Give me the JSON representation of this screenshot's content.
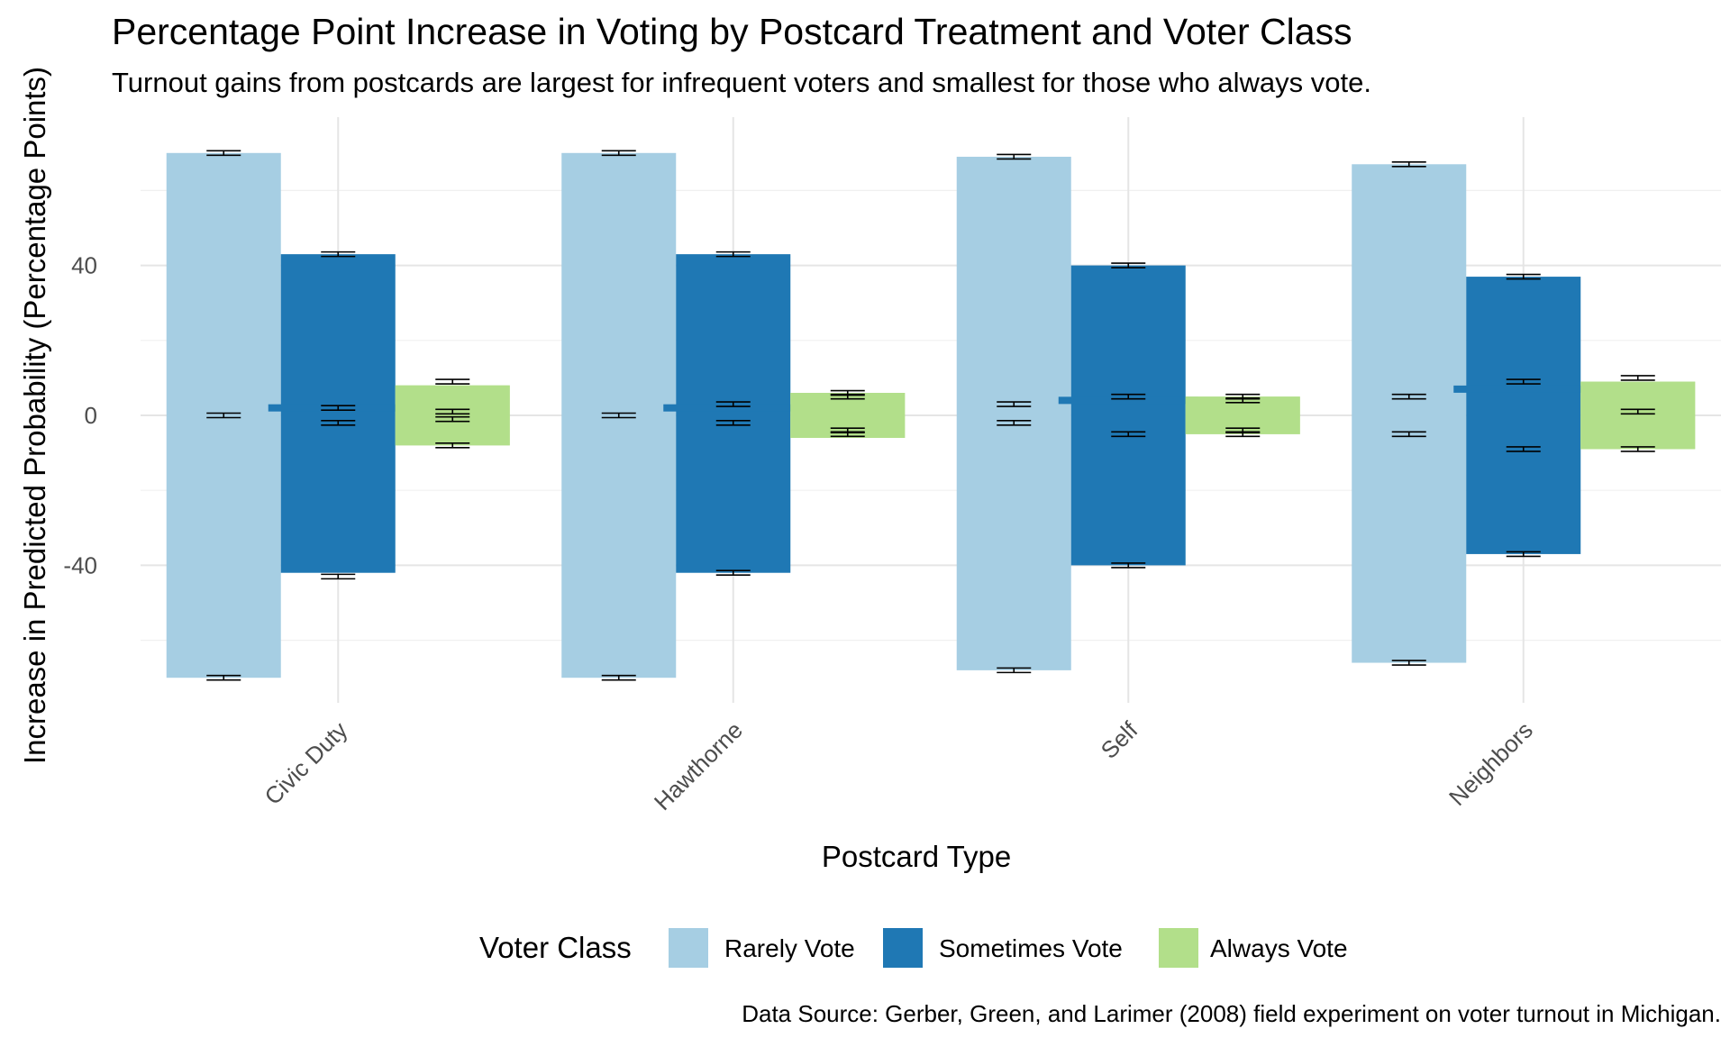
{
  "chart_data": {
    "type": "bar",
    "title": "Percentage Point Increase in Voting by Postcard Treatment and Voter Class",
    "subtitle": "Turnout gains from postcards are largest for infrequent voters and smallest for those who always vote.",
    "caption": "Data Source: Gerber, Green, and Larimer (2008) field experiment on voter turnout in Michigan.",
    "xlabel": "Postcard Type",
    "ylabel": "Increase in Predicted Probability (Percentage Points)",
    "categories": [
      "Civic Duty",
      "Hawthorne",
      "Self",
      "Neighbors"
    ],
    "ylim": [
      -78,
      78
    ],
    "yticks": [
      -40,
      0,
      40
    ],
    "ytick_labels": [
      "-40",
      "0",
      "40"
    ],
    "grid": true,
    "legend_title": "Voter Class",
    "legend_position": "bottom",
    "series": [
      {
        "name": "Rarely Vote",
        "color": "#a6cee3",
        "bar_lower": [
          -70,
          -70,
          -68,
          -66
        ],
        "bar_upper": [
          70,
          70,
          69,
          67
        ],
        "errorbars": [
          [
            70,
            0,
            -70
          ],
          [
            70,
            0,
            -70
          ],
          [
            69,
            3,
            -2,
            -68
          ],
          [
            67,
            5,
            -5,
            -66
          ]
        ]
      },
      {
        "name": "Sometimes Vote",
        "color": "#1f78b4",
        "bar_lower": [
          -42,
          -42,
          -40,
          -37
        ],
        "bar_upper": [
          43,
          43,
          40,
          37
        ],
        "errorbars": [
          [
            43,
            2,
            -2,
            -43
          ],
          [
            43,
            3,
            -2,
            -42
          ],
          [
            40,
            5,
            -5,
            -40
          ],
          [
            37,
            9,
            -9,
            -37
          ]
        ],
        "center_value": [
          2,
          2,
          4,
          7
        ]
      },
      {
        "name": "Always Vote",
        "color": "#b2df8a",
        "bar_lower": [
          -8,
          -6,
          -5,
          -9
        ],
        "bar_upper": [
          8,
          6,
          5,
          9
        ],
        "errorbars": [
          [
            9,
            1,
            -1,
            -8
          ],
          [
            6,
            5,
            -4,
            -5
          ],
          [
            5,
            4,
            -4,
            -5
          ],
          [
            10,
            1,
            -9
          ]
        ]
      }
    ]
  }
}
